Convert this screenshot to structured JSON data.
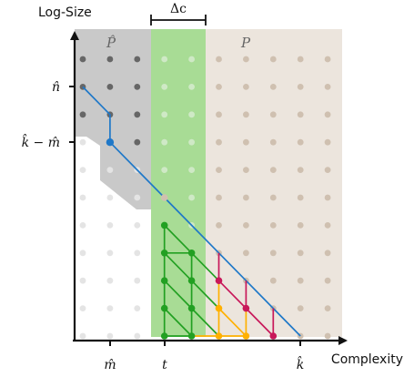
{
  "axes": {
    "y_label": "Log-Size",
    "x_label": "Complexity"
  },
  "delta_label": "Δc",
  "regions": {
    "p_hat": "P̂",
    "p": "P"
  },
  "x_ticks": [
    "m̂",
    "t",
    "k̂"
  ],
  "y_ticks": [
    "n̂",
    "k̂ − m̂"
  ],
  "colors": {
    "gray_region": "#c9c9c9",
    "band": "#a8dc95",
    "beige_region": "#ece5dd",
    "dot_white": "#e4e4e4",
    "dot_gray": "#666666",
    "dot_band": "#cfe9c6",
    "dot_beige": "#cfc0b0",
    "blue": "#1f78c8",
    "green": "#22a022",
    "orange": "#ffb000",
    "crimson": "#c8185a"
  }
}
